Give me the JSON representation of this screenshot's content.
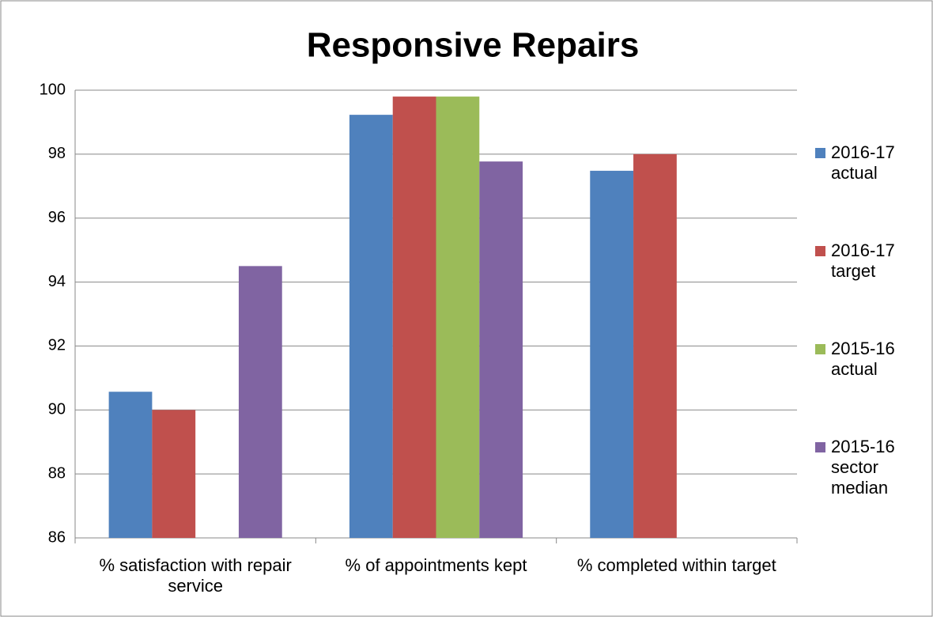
{
  "chart_data": {
    "type": "bar",
    "title": "Responsive Repairs",
    "categories": [
      "% satisfaction with repair service",
      "% of appointments kept",
      "% completed within target"
    ],
    "series": [
      {
        "name": "2016-17 actual",
        "color": "#4f81bd",
        "values": [
          90.57,
          99.23,
          97.48
        ]
      },
      {
        "name": "2016-17 target",
        "color": "#c0504d",
        "values": [
          90,
          99.8,
          98
        ]
      },
      {
        "name": "2015-16 actual",
        "color": "#9bbb59",
        "values": [
          null,
          99.8,
          null
        ]
      },
      {
        "name": "2015-16 sector median",
        "color": "#8064a2",
        "values": [
          94.5,
          97.77,
          null
        ]
      }
    ],
    "ylim": [
      86,
      100
    ],
    "yticks": [
      86,
      88,
      90,
      92,
      94,
      96,
      98,
      100
    ],
    "grid": true,
    "legend": "right"
  }
}
